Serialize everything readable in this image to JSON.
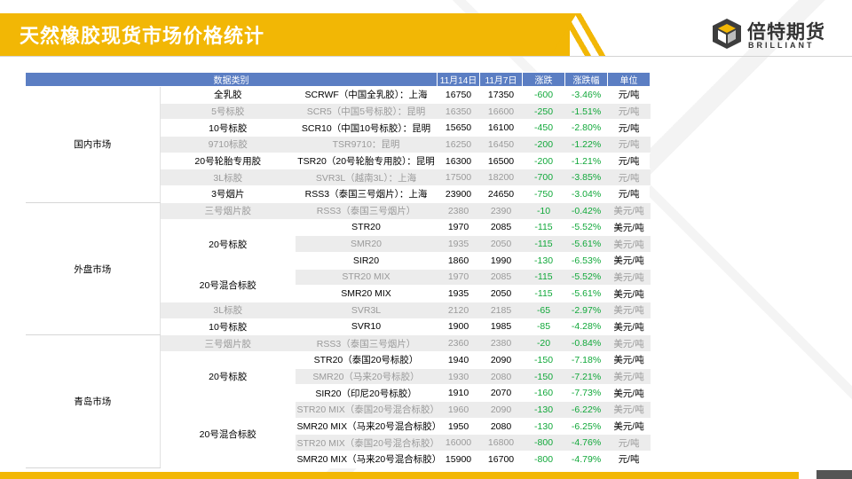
{
  "header": {
    "title": "天然橡胶现货市场价格统计",
    "logo_cn": "倍特期货",
    "logo_en": "BRILLIANT"
  },
  "colors": {
    "accent": "#f2b705",
    "table_header": "#5b7ec3",
    "negative_change": "#11a83a"
  },
  "table": {
    "headers": [
      "数据类别",
      "11月14日",
      "11月7日",
      "涨跌",
      "涨跌幅",
      "单位"
    ],
    "markets": [
      {
        "market": "国内市场",
        "rows": [
          {
            "type": "全乳胶",
            "name": "SCRWF（中国全乳胶）：上海",
            "v1": "16750",
            "v2": "17350",
            "chg": "-600",
            "pct": "-3.46%",
            "unit": "元/吨",
            "dim": false
          },
          {
            "type": "5号标胶",
            "name": "SCR5（中国5号标胶）：昆明",
            "v1": "16350",
            "v2": "16600",
            "chg": "-250",
            "pct": "-1.51%",
            "unit": "元/吨",
            "dim": true
          },
          {
            "type": "10号标胶",
            "name": "SCR10（中国10号标胶）：昆明",
            "v1": "15650",
            "v2": "16100",
            "chg": "-450",
            "pct": "-2.80%",
            "unit": "元/吨",
            "dim": false
          },
          {
            "type": "9710标胶",
            "name": "TSR9710：昆明",
            "v1": "16250",
            "v2": "16450",
            "chg": "-200",
            "pct": "-1.22%",
            "unit": "元/吨",
            "dim": true
          },
          {
            "type": "20号轮胎专用胶",
            "name": "TSR20（20号轮胎专用胶）：昆明",
            "v1": "16300",
            "v2": "16500",
            "chg": "-200",
            "pct": "-1.21%",
            "unit": "元/吨",
            "dim": false
          },
          {
            "type": "3L标胶",
            "name": "SVR3L（越南3L）：上海",
            "v1": "17500",
            "v2": "18200",
            "chg": "-700",
            "pct": "-3.85%",
            "unit": "元/吨",
            "dim": true
          },
          {
            "type": "3号烟片",
            "name": "RSS3（泰国三号烟片）：上海",
            "v1": "23900",
            "v2": "24650",
            "chg": "-750",
            "pct": "-3.04%",
            "unit": "元/吨",
            "dim": false
          }
        ]
      },
      {
        "market": "外盘市场",
        "rows": [
          {
            "type": "三号烟片胶",
            "name": "RSS3（泰国三号烟片）",
            "v1": "2380",
            "v2": "2390",
            "chg": "-10",
            "pct": "-0.42%",
            "unit": "美元/吨",
            "dim": true
          },
          {
            "type": "20号标胶",
            "span": 3,
            "name": "STR20",
            "v1": "1970",
            "v2": "2085",
            "chg": "-115",
            "pct": "-5.52%",
            "unit": "美元/吨",
            "dim": false
          },
          {
            "type": "",
            "name": "SMR20",
            "v1": "1935",
            "v2": "2050",
            "chg": "-115",
            "pct": "-5.61%",
            "unit": "美元/吨",
            "dim": true
          },
          {
            "type": "",
            "name": "SIR20",
            "v1": "1860",
            "v2": "1990",
            "chg": "-130",
            "pct": "-6.53%",
            "unit": "美元/吨",
            "dim": false
          },
          {
            "type": "20号混合标胶",
            "span": 2,
            "name": "STR20 MIX",
            "v1": "1970",
            "v2": "2085",
            "chg": "-115",
            "pct": "-5.52%",
            "unit": "美元/吨",
            "dim": true
          },
          {
            "type": "",
            "name": "SMR20 MIX",
            "v1": "1935",
            "v2": "2050",
            "chg": "-115",
            "pct": "-5.61%",
            "unit": "美元/吨",
            "dim": false
          },
          {
            "type": "3L标胶",
            "name": "SVR3L",
            "v1": "2120",
            "v2": "2185",
            "chg": "-65",
            "pct": "-2.97%",
            "unit": "美元/吨",
            "dim": true
          },
          {
            "type": "10号标胶",
            "name": "SVR10",
            "v1": "1900",
            "v2": "1985",
            "chg": "-85",
            "pct": "-4.28%",
            "unit": "美元/吨",
            "dim": false
          }
        ]
      },
      {
        "market": "青岛市场",
        "rows": [
          {
            "type": "三号烟片胶",
            "name": "RSS3（泰国三号烟片）",
            "v1": "2360",
            "v2": "2380",
            "chg": "-20",
            "pct": "-0.84%",
            "unit": "美元/吨",
            "dim": true
          },
          {
            "type": "20号标胶",
            "span": 3,
            "name": "STR20（泰国20号标胶）",
            "v1": "1940",
            "v2": "2090",
            "chg": "-150",
            "pct": "-7.18%",
            "unit": "美元/吨",
            "dim": false
          },
          {
            "type": "",
            "name": "SMR20（马来20号标胶）",
            "v1": "1930",
            "v2": "2080",
            "chg": "-150",
            "pct": "-7.21%",
            "unit": "美元/吨",
            "dim": true
          },
          {
            "type": "",
            "name": "SIR20（印尼20号标胶）",
            "v1": "1910",
            "v2": "2070",
            "chg": "-160",
            "pct": "-7.73%",
            "unit": "美元/吨",
            "dim": false
          },
          {
            "type": "20号混合标胶",
            "span": 4,
            "name": "STR20 MIX（泰国20号混合标胶）",
            "v1": "1960",
            "v2": "2090",
            "chg": "-130",
            "pct": "-6.22%",
            "unit": "美元/吨",
            "dim": true
          },
          {
            "type": "",
            "name": "SMR20 MIX（马来20号混合标胶）",
            "v1": "1950",
            "v2": "2080",
            "chg": "-130",
            "pct": "-6.25%",
            "unit": "美元/吨",
            "dim": false
          },
          {
            "type": "",
            "name": "STR20 MIX（泰国20号混合标胶）",
            "v1": "16000",
            "v2": "16800",
            "chg": "-800",
            "pct": "-4.76%",
            "unit": "元/吨",
            "dim": true
          },
          {
            "type": "",
            "name": "SMR20 MIX（马来20号混合标胶）",
            "v1": "15900",
            "v2": "16700",
            "chg": "-800",
            "pct": "-4.79%",
            "unit": "元/吨",
            "dim": false
          }
        ]
      }
    ]
  }
}
